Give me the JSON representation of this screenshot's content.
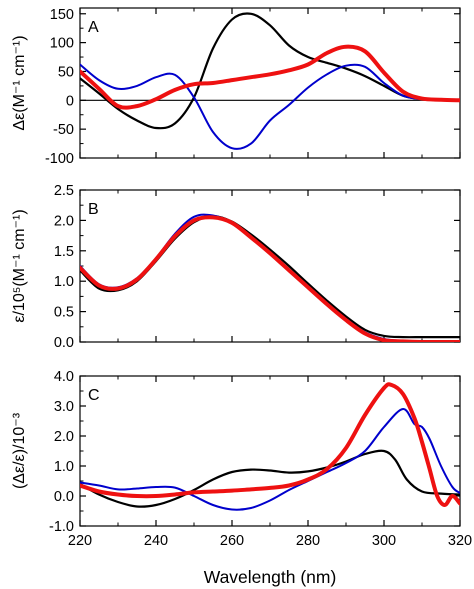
{
  "chart_data": [
    {
      "type": "line",
      "panel_label": "A",
      "xlim": [
        220,
        320
      ],
      "ylim": [
        -100,
        160
      ],
      "yticks": [
        -100,
        -50,
        0,
        50,
        100,
        150
      ],
      "ylabel": "Δε(M⁻¹ cm⁻¹)",
      "zero_line": true,
      "grid": false,
      "series": [
        {
          "color": "#000000",
          "width": 2.2,
          "x": [
            220,
            225,
            230,
            235,
            240,
            245,
            250,
            255,
            260,
            265,
            270,
            275,
            280,
            285,
            290,
            295,
            300,
            305,
            310,
            315,
            320
          ],
          "y": [
            38,
            12,
            -15,
            -35,
            -48,
            -40,
            5,
            90,
            140,
            150,
            130,
            95,
            75,
            65,
            55,
            42,
            25,
            8,
            2,
            1,
            0
          ]
        },
        {
          "color": "#0000cc",
          "width": 2.0,
          "x": [
            220,
            225,
            230,
            235,
            240,
            245,
            250,
            255,
            260,
            265,
            270,
            275,
            280,
            285,
            290,
            295,
            300,
            305,
            310,
            315,
            320
          ],
          "y": [
            62,
            35,
            20,
            25,
            40,
            44,
            5,
            -55,
            -83,
            -75,
            -35,
            -8,
            22,
            45,
            60,
            58,
            30,
            8,
            2,
            1,
            0
          ]
        },
        {
          "color": "#ee1111",
          "width": 4.0,
          "x": [
            220,
            225,
            230,
            235,
            240,
            245,
            250,
            255,
            260,
            265,
            270,
            275,
            280,
            285,
            290,
            295,
            300,
            305,
            310,
            315,
            320
          ],
          "y": [
            50,
            20,
            -10,
            -10,
            2,
            18,
            28,
            30,
            35,
            40,
            45,
            52,
            62,
            82,
            93,
            85,
            48,
            15,
            3,
            1,
            0
          ]
        }
      ]
    },
    {
      "type": "line",
      "panel_label": "B",
      "xlim": [
        220,
        320
      ],
      "ylim": [
        0,
        2.5
      ],
      "yticks": [
        0.0,
        0.5,
        1.0,
        1.5,
        2.0,
        2.5
      ],
      "ylabel": "ε/10⁵(M⁻¹ cm⁻¹)",
      "grid": false,
      "series": [
        {
          "color": "#000000",
          "width": 2.2,
          "x": [
            220,
            225,
            230,
            235,
            240,
            245,
            250,
            255,
            260,
            265,
            270,
            275,
            280,
            285,
            290,
            295,
            300,
            305,
            310,
            315,
            320
          ],
          "y": [
            1.18,
            0.88,
            0.85,
            1.0,
            1.33,
            1.7,
            1.97,
            2.07,
            1.98,
            1.77,
            1.52,
            1.25,
            0.96,
            0.68,
            0.42,
            0.2,
            0.1,
            0.08,
            0.08,
            0.08,
            0.08
          ]
        },
        {
          "color": "#0000cc",
          "width": 2.0,
          "x": [
            220,
            225,
            230,
            235,
            240,
            245,
            250,
            255,
            260,
            265,
            270,
            275,
            280,
            285,
            290,
            295,
            300,
            305,
            310,
            315,
            320
          ],
          "y": [
            1.25,
            0.95,
            0.9,
            1.05,
            1.38,
            1.78,
            2.06,
            2.08,
            1.96,
            1.72,
            1.46,
            1.19,
            0.92,
            0.64,
            0.38,
            0.16,
            0.05,
            0.02,
            0.01,
            0.01,
            0.01
          ]
        },
        {
          "color": "#ee1111",
          "width": 4.0,
          "x": [
            220,
            225,
            230,
            235,
            240,
            245,
            250,
            255,
            260,
            265,
            270,
            275,
            280,
            285,
            290,
            295,
            300,
            305,
            310,
            315,
            320
          ],
          "y": [
            1.22,
            0.93,
            0.88,
            1.03,
            1.36,
            1.74,
            2.0,
            2.05,
            1.96,
            1.72,
            1.46,
            1.18,
            0.9,
            0.62,
            0.36,
            0.14,
            0.03,
            0.01,
            0.0,
            0.0,
            0.0
          ]
        }
      ]
    },
    {
      "type": "line",
      "panel_label": "C",
      "xlim": [
        220,
        320
      ],
      "ylim": [
        -1.0,
        4.0
      ],
      "yticks": [
        -1.0,
        0.0,
        1.0,
        2.0,
        3.0,
        4.0
      ],
      "xticks": [
        220,
        240,
        260,
        280,
        300,
        320
      ],
      "ylabel": "(Δε/ε)/10⁻³",
      "xlabel": "Wavelength (nm)",
      "grid": false,
      "series": [
        {
          "color": "#000000",
          "width": 2.2,
          "x": [
            220,
            225,
            230,
            235,
            240,
            245,
            250,
            255,
            260,
            265,
            270,
            275,
            280,
            285,
            290,
            295,
            300,
            303,
            306,
            310,
            315,
            320
          ],
          "y": [
            0.4,
            0.05,
            -0.2,
            -0.35,
            -0.3,
            -0.1,
            0.2,
            0.55,
            0.8,
            0.88,
            0.85,
            0.78,
            0.82,
            0.95,
            1.15,
            1.4,
            1.5,
            1.2,
            0.55,
            0.15,
            0.08,
            0.05
          ]
        },
        {
          "color": "#0000cc",
          "width": 2.0,
          "x": [
            220,
            225,
            230,
            235,
            240,
            245,
            250,
            255,
            260,
            265,
            270,
            275,
            280,
            285,
            290,
            295,
            300,
            305,
            308,
            310,
            312,
            315,
            318,
            320
          ],
          "y": [
            0.45,
            0.35,
            0.22,
            0.25,
            0.3,
            0.28,
            0.0,
            -0.3,
            -0.45,
            -0.4,
            -0.15,
            0.2,
            0.5,
            0.8,
            1.1,
            1.5,
            2.3,
            2.9,
            2.4,
            2.3,
            1.9,
            1.0,
            0.3,
            0.1
          ]
        },
        {
          "color": "#ee1111",
          "width": 4.0,
          "x": [
            220,
            225,
            230,
            235,
            240,
            245,
            250,
            255,
            260,
            265,
            270,
            275,
            280,
            285,
            290,
            295,
            300,
            302,
            305,
            308,
            310,
            312,
            314,
            316,
            318,
            320
          ],
          "y": [
            0.35,
            0.15,
            0.05,
            0.0,
            0.0,
            0.05,
            0.12,
            0.15,
            0.18,
            0.22,
            0.27,
            0.35,
            0.55,
            0.9,
            1.6,
            2.7,
            3.6,
            3.7,
            3.4,
            2.6,
            1.8,
            0.9,
            0.0,
            -0.3,
            0.0,
            -0.25
          ]
        }
      ]
    }
  ]
}
